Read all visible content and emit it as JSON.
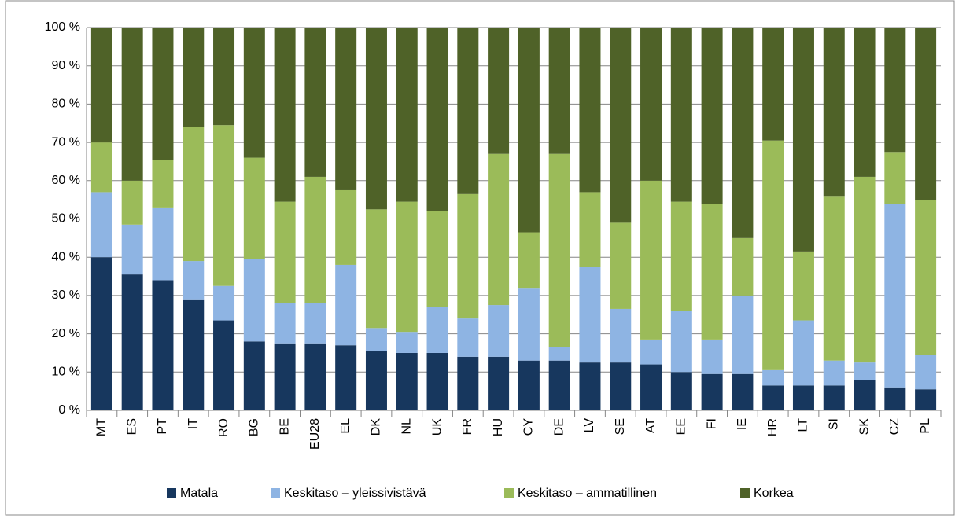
{
  "chart_data": {
    "type": "stacked_bar",
    "categories": [
      "MT",
      "ES",
      "PT",
      "IT",
      "RO",
      "BG",
      "BE",
      "EU28",
      "EL",
      "DK",
      "NL",
      "UK",
      "FR",
      "HU",
      "CY",
      "DE",
      "LV",
      "SE",
      "AT",
      "EE",
      "FI",
      "IE",
      "HR",
      "LT",
      "SI",
      "SK",
      "CZ",
      "PL"
    ],
    "series": [
      {
        "name": "Matala",
        "color": "#17375e",
        "values": [
          40,
          35.5,
          34,
          29,
          23.5,
          18,
          17.5,
          17.5,
          17,
          15.5,
          15,
          15,
          14,
          14,
          13,
          13,
          12.5,
          12.5,
          12,
          10,
          9.5,
          9.5,
          6.5,
          6.5,
          6.5,
          8,
          6,
          5.5
        ]
      },
      {
        "name": "Keskitaso – yleissivistävä",
        "color": "#8eb4e3",
        "values": [
          17,
          13,
          19,
          10,
          9,
          21.5,
          10.5,
          10.5,
          21,
          6,
          5.5,
          12,
          10,
          13.5,
          19,
          3.5,
          25,
          14,
          6.5,
          16,
          9,
          20.5,
          4,
          17,
          6.5,
          4.5,
          48,
          9
        ]
      },
      {
        "name": "Keskitaso – ammatillinen",
        "color": "#9bbb59",
        "values": [
          13,
          11.5,
          12.5,
          35,
          42,
          26.5,
          26.5,
          33,
          19.5,
          31,
          34,
          25,
          32.5,
          39.5,
          14.5,
          50.5,
          19.5,
          22.5,
          41.5,
          28.5,
          35.5,
          15,
          60,
          18,
          43,
          48.5,
          13.5,
          40.5
        ]
      },
      {
        "name": "Korkea",
        "color": "#4f6228",
        "values": [
          30,
          40,
          34.5,
          26,
          25.5,
          34,
          45.5,
          39,
          42.5,
          47.5,
          45.5,
          48,
          43.5,
          33,
          53.5,
          33,
          43,
          51,
          40,
          45.5,
          46,
          55,
          29.5,
          58.5,
          44,
          39,
          32.5,
          45
        ]
      }
    ],
    "ylim": [
      0,
      100
    ],
    "yticks": [
      {
        "value": 0,
        "label": "0 %"
      },
      {
        "value": 10,
        "label": "10 %"
      },
      {
        "value": 20,
        "label": "20 %"
      },
      {
        "value": 30,
        "label": "30 %"
      },
      {
        "value": 40,
        "label": "40 %"
      },
      {
        "value": 50,
        "label": "50 %"
      },
      {
        "value": 60,
        "label": "60 %"
      },
      {
        "value": 70,
        "label": "70 %"
      },
      {
        "value": 80,
        "label": "80 %"
      },
      {
        "value": 90,
        "label": "90 %"
      },
      {
        "value": 100,
        "label": "100 %"
      }
    ],
    "grid": true
  }
}
